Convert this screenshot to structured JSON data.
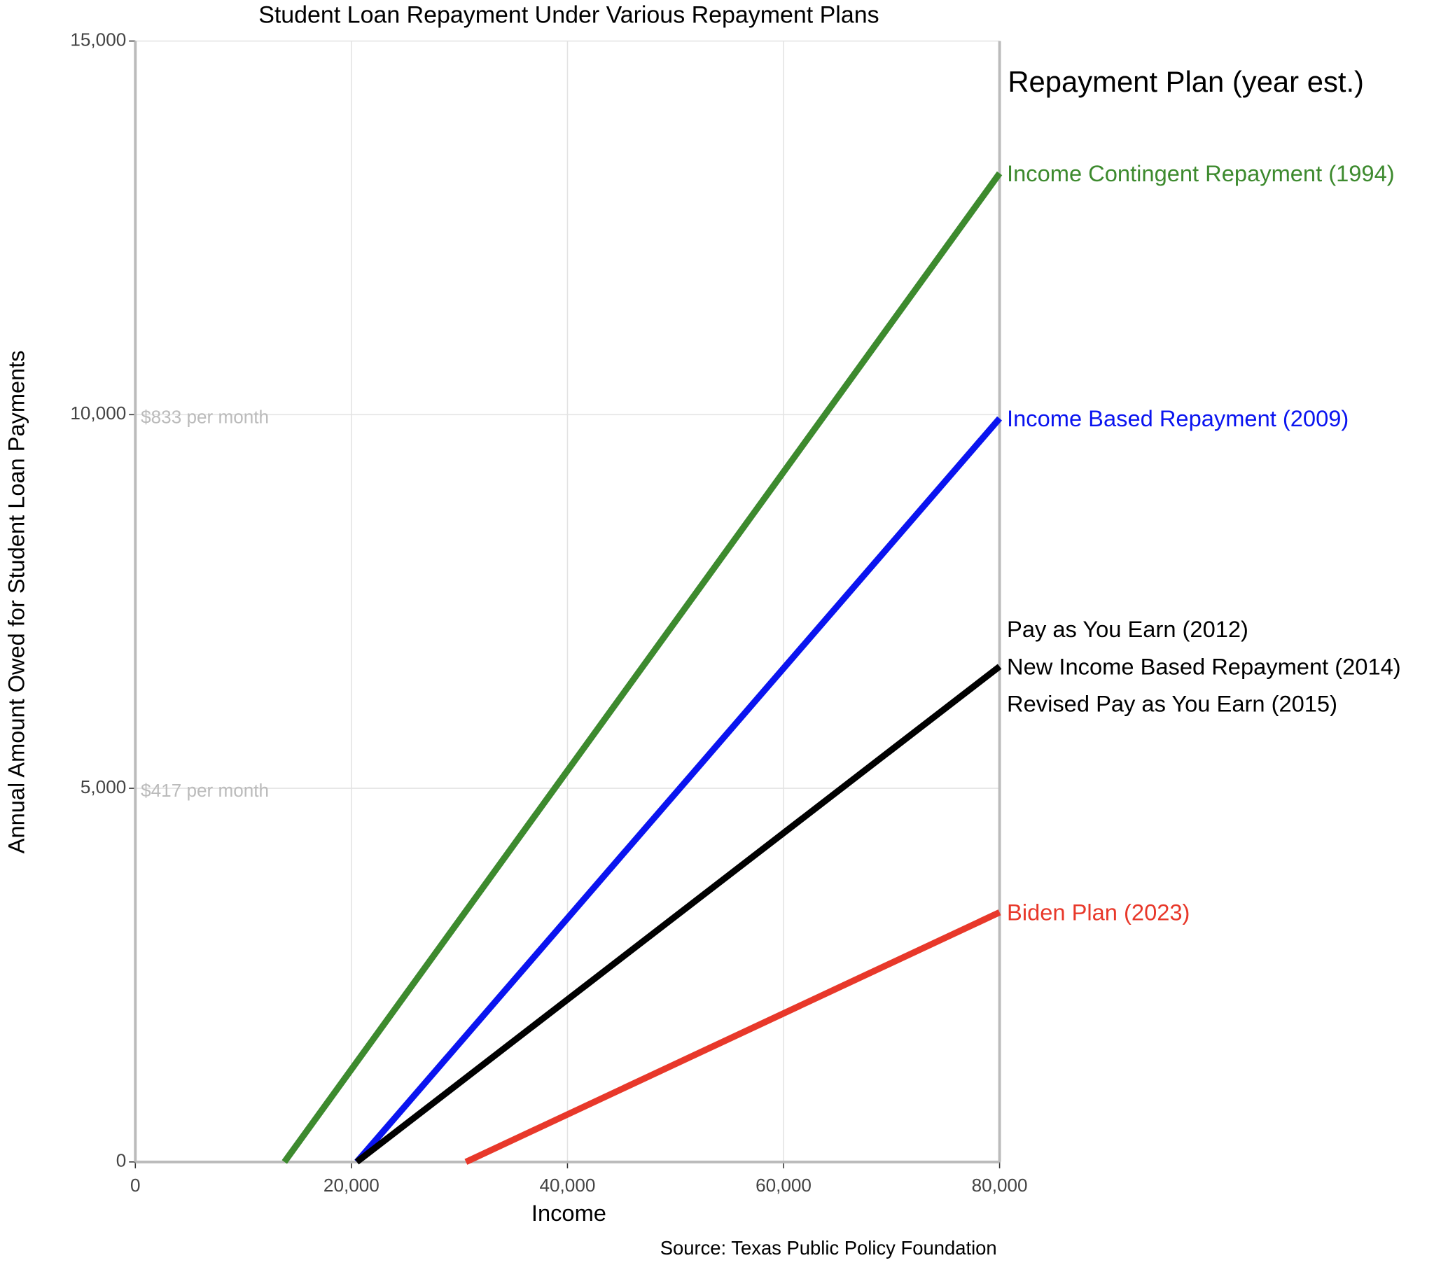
{
  "chart_data": {
    "type": "line",
    "title": "Student Loan Repayment Under Various Repayment Plans",
    "x_label": "Income",
    "y_label": "Annual Amount Owed for Student Loan Payments",
    "source": "Source: Texas Public Policy Foundation",
    "legend_title": "Repayment Plan (year est.)",
    "xlim": [
      0,
      80000
    ],
    "xticks": [
      {
        "value": 0,
        "label": "0"
      },
      {
        "value": 20000,
        "label": "20,000"
      },
      {
        "value": 40000,
        "label": "40,000"
      },
      {
        "value": 60000,
        "label": "60,000"
      },
      {
        "value": 80000,
        "label": "80,000"
      }
    ],
    "ylim": [
      0,
      15000
    ],
    "yticks": [
      {
        "value": 0,
        "label": "0"
      },
      {
        "value": 5000,
        "label": "5,000"
      },
      {
        "value": 10000,
        "label": "10,000"
      },
      {
        "value": 15000,
        "label": "15,000"
      }
    ],
    "grid": true,
    "annotations": [
      {
        "text": "$833 per month",
        "y": 10000
      },
      {
        "text": "$417 per month",
        "y": 5000
      }
    ],
    "series": [
      {
        "labels": [
          "Income Contingent Repayment (1994)"
        ],
        "color": "#3d8a2e",
        "x": [
          13800,
          80000
        ],
        "values": [
          0,
          13230
        ]
      },
      {
        "labels": [
          "Income Based Repayment (2009)"
        ],
        "color": "#0a14f0",
        "x": [
          20500,
          80000
        ],
        "values": [
          0,
          9950
        ]
      },
      {
        "labels": [
          "Pay as You Earn (2012)",
          "New Income Based Repayment (2014)",
          "Revised Pay as You Earn (2015)"
        ],
        "color": "#000000",
        "x": [
          20500,
          80000
        ],
        "values": [
          0,
          6630
        ]
      },
      {
        "labels": [
          "Biden Plan (2023)"
        ],
        "color": "#e8382a",
        "x": [
          30600,
          80000
        ],
        "values": [
          0,
          3340
        ]
      }
    ]
  }
}
